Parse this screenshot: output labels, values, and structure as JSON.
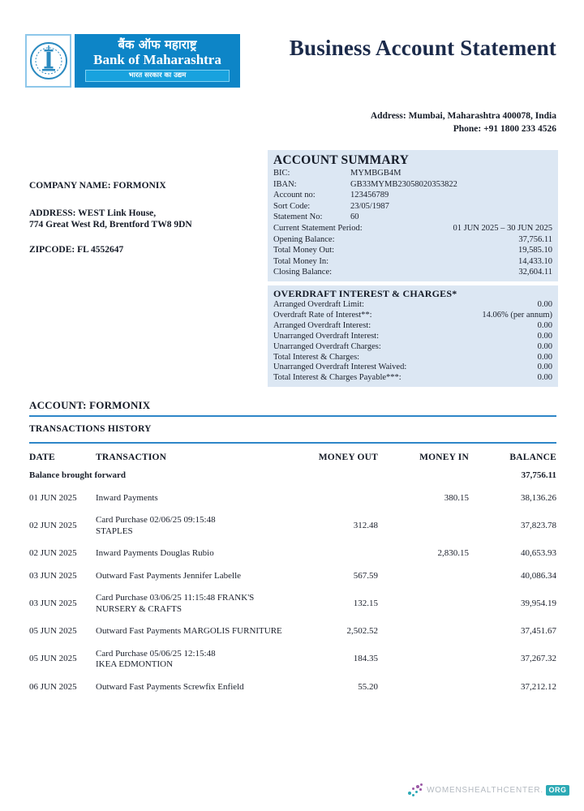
{
  "bank": {
    "name_hindi": "बैंक ऑफ महाराष्ट्र",
    "name_english": "Bank of Maharashtra",
    "tagline_hindi": "भारत सरकार का उद्यम"
  },
  "title": "Business Account Statement",
  "contact": {
    "address": "Address: Mumbai, Maharashtra 400078, India",
    "phone": "Phone: +91 1800 233 4526"
  },
  "company": {
    "name": "COMPANY NAME: FORMONIX",
    "address1": "ADDRESS: WEST Link House,",
    "address2": "774 Great West Rd, Brentford TW8 9DN",
    "zipcode": "ZIPCODE: FL 4552647"
  },
  "account_summary": {
    "title": "ACCOUNT SUMMARY",
    "rows": [
      {
        "label": "BIC:",
        "value": "MYMBGB4M",
        "align": "left"
      },
      {
        "label": "IBAN:",
        "value": "GB33MYMB23058020353822",
        "align": "left"
      },
      {
        "label": "Account no:",
        "value": "123456789",
        "align": "left"
      },
      {
        "label": "Sort Code:",
        "value": "23/05/1987",
        "align": "left"
      },
      {
        "label": "Statement No:",
        "value": "60",
        "align": "left"
      },
      {
        "label": "Current Statement Period:",
        "value": "01 JUN 2025 – 30 JUN 2025",
        "align": "right"
      },
      {
        "label": "Opening Balance:",
        "value": "37,756.11",
        "align": "right"
      },
      {
        "label": "Total Money Out:",
        "value": "19,585.10",
        "align": "right"
      },
      {
        "label": "Total Money In:",
        "value": "14,433.10",
        "align": "right"
      },
      {
        "label": "Closing Balance:",
        "value": "32,604.11",
        "align": "right"
      }
    ]
  },
  "overdraft": {
    "title": "OVERDRAFT INTEREST & CHARGES*",
    "rows": [
      {
        "label": "Arranged Overdraft Limit:",
        "value": "0.00"
      },
      {
        "label": "Overdraft Rate of Interest**:",
        "value": "14.06% (per annum)"
      },
      {
        "label": "Arranged Overdraft Interest:",
        "value": "0.00"
      },
      {
        "label": "Unarranged Overdraft Interest:",
        "value": "0.00"
      },
      {
        "label": "Unarranged Overdraft Charges:",
        "value": "0.00"
      },
      {
        "label": "Total Interest & Charges:",
        "value": "0.00"
      },
      {
        "label": "Unarranged Overdraft Interest Waived:",
        "value": "0.00"
      },
      {
        "label": "Total Interest & Charges Payable***:",
        "value": "0.00"
      }
    ]
  },
  "account_section": {
    "title": "ACCOUNT: FORMONIX",
    "subtitle": "TRANSACTIONS HISTORY"
  },
  "transactions": {
    "headers": [
      "DATE",
      "TRANSACTION",
      "MONEY OUT",
      "MONEY IN",
      "BALANCE"
    ],
    "opening": {
      "label": "Balance brought forward",
      "balance": "37,756.11"
    },
    "rows": [
      {
        "date": "01 JUN 2025",
        "transaction": "Inward Payments",
        "transaction2": "",
        "money_out": "",
        "money_in": "380.15",
        "balance": "38,136.26"
      },
      {
        "date": "02 JUN 2025",
        "transaction": "Card Purchase 02/06/25 09:15:48",
        "transaction2": "STAPLES",
        "money_out": "312.48",
        "money_in": "",
        "balance": "37,823.78"
      },
      {
        "date": "02 JUN 2025",
        "transaction": "Inward Payments Douglas Rubio",
        "transaction2": "",
        "money_out": "",
        "money_in": "2,830.15",
        "balance": "40,653.93"
      },
      {
        "date": "03 JUN 2025",
        "transaction": "Outward Fast Payments Jennifer Labelle",
        "transaction2": "",
        "money_out": "567.59",
        "money_in": "",
        "balance": "40,086.34"
      },
      {
        "date": "03 JUN 2025",
        "transaction": "Card Purchase 03/06/25 11:15:48 FRANK'S",
        "transaction2": "NURSERY & CRAFTS",
        "money_out": "132.15",
        "money_in": "",
        "balance": "39,954.19"
      },
      {
        "date": "05 JUN 2025",
        "transaction": "Outward Fast Payments MARGOLIS FURNITURE",
        "transaction2": "",
        "money_out": "2,502.52",
        "money_in": "",
        "balance": "37,451.67"
      },
      {
        "date": "05 JUN 2025",
        "transaction": "Card Purchase 05/06/25 12:15:48",
        "transaction2": "IKEA EDMONTION",
        "money_out": "184.35",
        "money_in": "",
        "balance": "37,267.32"
      },
      {
        "date": "06 JUN 2025",
        "transaction": "Outward Fast Payments Screwfix Enfield",
        "transaction2": "",
        "money_out": "55.20",
        "money_in": "",
        "balance": "37,212.12"
      }
    ]
  },
  "footer": {
    "watermark": "WOMENSHEALTHCENTER.",
    "watermark_suffix": "ORG"
  },
  "colors": {
    "accent_line_blue": "#2e86c8",
    "panel_blue": "#dce7f3",
    "logo_blue": "#0d85c7",
    "logo_strip_blue": "#18a2de",
    "title_navy": "#1b2a4a",
    "watermark_teal": "#2ca9b5",
    "watermark_purple": "#9b59a6"
  }
}
